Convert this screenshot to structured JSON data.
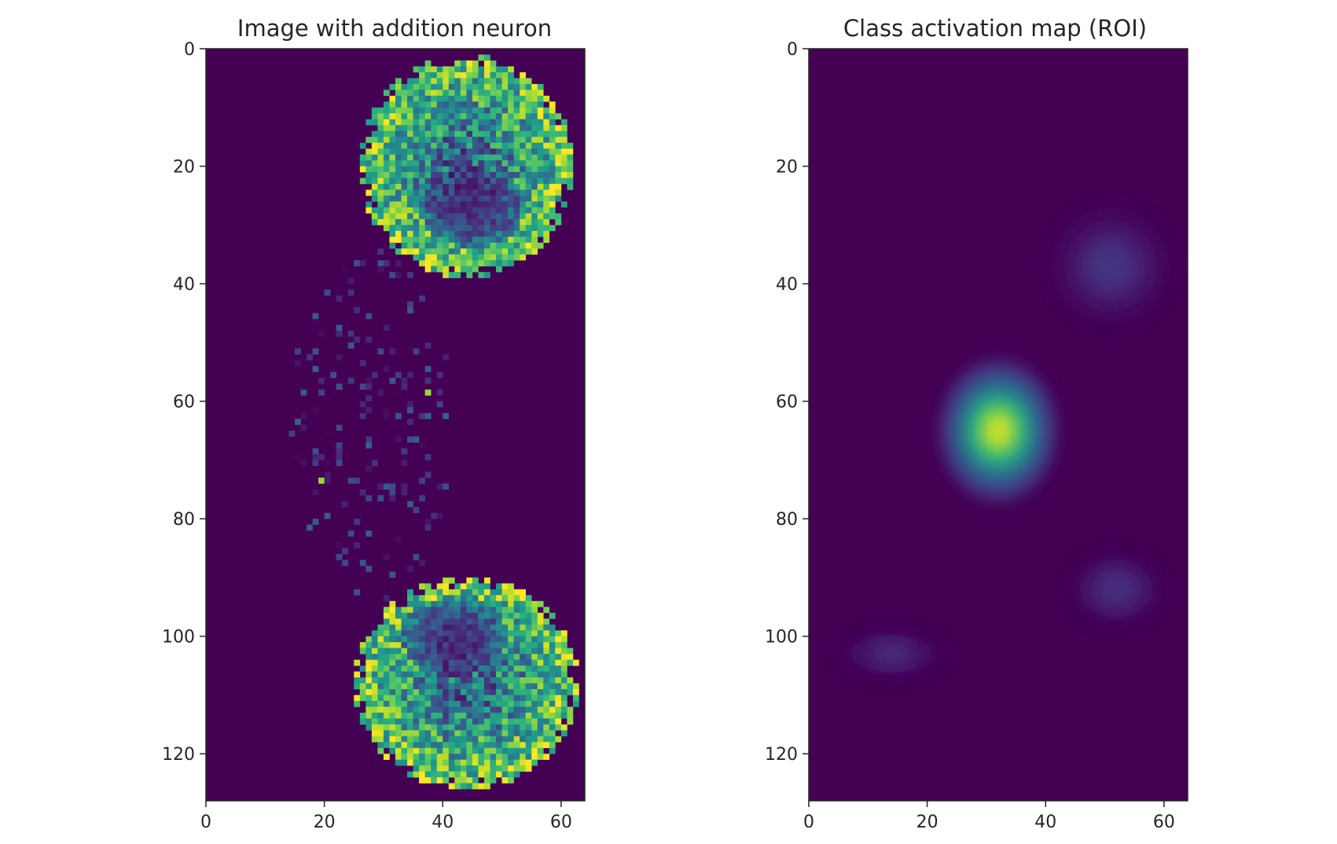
{
  "chart_data": [
    {
      "type": "heatmap",
      "title": "Image with addition neuron",
      "xlabel": "",
      "ylabel": "",
      "xlim": [
        0,
        64
      ],
      "ylim": [
        128,
        0
      ],
      "x_ticks": [
        0,
        20,
        40,
        60
      ],
      "y_ticks": [
        0,
        20,
        40,
        60,
        80,
        100,
        120
      ],
      "colormap": "viridis",
      "background_color": "#440154",
      "highlight_color": "#fde725",
      "grid": false,
      "regions": [
        {
          "kind": "ring",
          "cx": 44,
          "cy": 20,
          "rx": 18,
          "ry": 19,
          "level": 0.8,
          "hollow_cx": 45,
          "hollow_cy": 27,
          "hollow_rx": 9,
          "hollow_ry": 7
        },
        {
          "kind": "ring",
          "cx": 44,
          "cy": 108,
          "rx": 19,
          "ry": 18,
          "level": 0.8,
          "hollow_cx": 42,
          "hollow_cy": 100,
          "hollow_rx": 9,
          "hollow_ry": 7
        },
        {
          "kind": "sparse",
          "cx": 28,
          "cy": 64,
          "rx": 14,
          "ry": 30,
          "level": 0.15
        }
      ]
    },
    {
      "type": "heatmap",
      "title": "Class activation map (ROI)",
      "xlabel": "",
      "ylabel": "",
      "xlim": [
        0,
        64
      ],
      "ylim": [
        128,
        0
      ],
      "x_ticks": [
        0,
        20,
        40,
        60
      ],
      "y_ticks": [
        0,
        20,
        40,
        60,
        80,
        100,
        120
      ],
      "colormap": "viridis",
      "background_color": "#440154",
      "highlight_color": "#fde725",
      "grid": false,
      "blobs": [
        {
          "cx": 32,
          "cy": 65,
          "sx": 4.5,
          "sy": 5.5,
          "peak": 1.0
        },
        {
          "cx": 51,
          "cy": 37,
          "sx": 4.5,
          "sy": 4.5,
          "peak": 0.18
        },
        {
          "cx": 52,
          "cy": 92,
          "sx": 3.5,
          "sy": 2.8,
          "peak": 0.16
        },
        {
          "cx": 14,
          "cy": 103,
          "sx": 4.0,
          "sy": 1.8,
          "peak": 0.14
        }
      ]
    }
  ]
}
